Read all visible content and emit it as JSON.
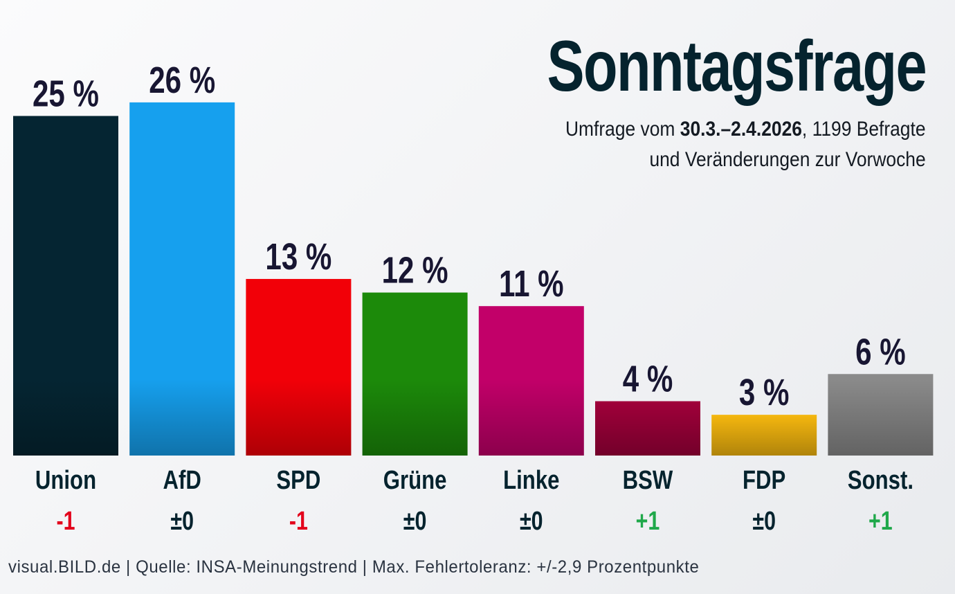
{
  "chart_data": {
    "type": "bar",
    "title": "Sonntagsfrage",
    "subtitle_prefix": "Umfrage vom ",
    "subtitle_date": "30.3.–2.4.2026",
    "subtitle_suffix": ", 1199 Befragte",
    "subtitle_line2": "und Veränderungen zur Vorwoche",
    "xlabel": "",
    "ylabel": "",
    "ylim": [
      0,
      26
    ],
    "grid": false,
    "unit": "%",
    "categories": [
      "Union",
      "AfD",
      "SPD",
      "Grüne",
      "Linke",
      "BSW",
      "FDP",
      "Sonst."
    ],
    "values": [
      25,
      26,
      13,
      12,
      11,
      4,
      3,
      6
    ],
    "value_labels": [
      "25 %",
      "26 %",
      "13 %",
      "12 %",
      "11 %",
      "4 %",
      "3 %",
      "6 %"
    ],
    "changes": [
      "-1",
      "±0",
      "-1",
      "±0",
      "±0",
      "+1",
      "±0",
      "+1"
    ],
    "colors": [
      "#052532",
      "#16a0ee",
      "#f20008",
      "#1c8a0a",
      "#c20069",
      "#a0003a",
      "#f5b70f",
      "#8a8a8a"
    ],
    "change_colors": {
      "negative": "#e3001b",
      "neutral": "#05232e",
      "positive": "#1fa84a"
    }
  },
  "footer": "visual.BILD.de | Quelle: INSA-Meinungstrend | Max. Fehlertoleranz: +/-2,9 Prozentpunkte"
}
